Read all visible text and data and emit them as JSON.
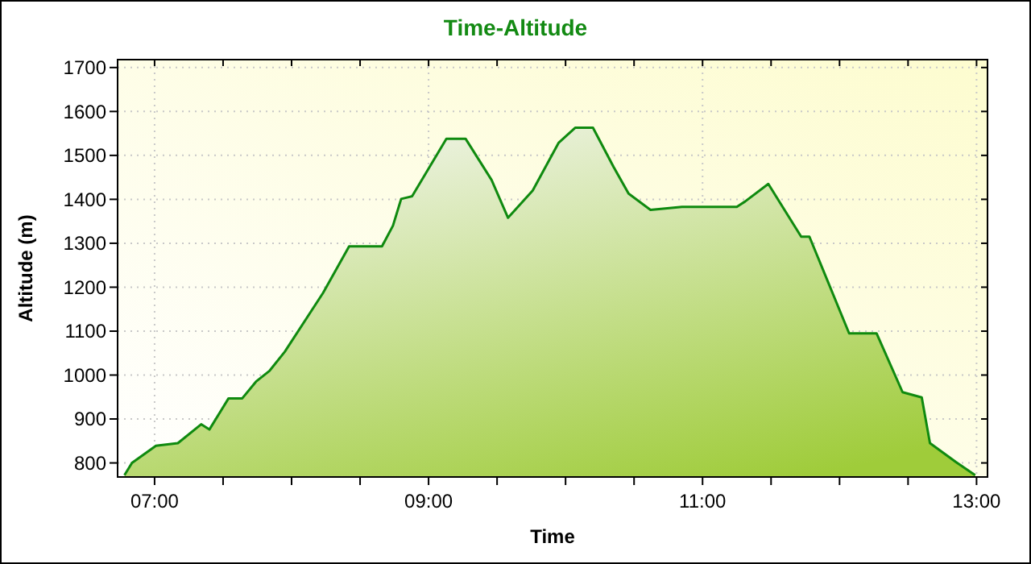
{
  "chart_data": {
    "type": "area",
    "title": "Time-Altitude",
    "xlabel": "Time",
    "ylabel": "Altitude (m)",
    "xlim": [
      6.73,
      13.08
    ],
    "ylim": [
      768,
      1718
    ],
    "xticks": [
      {
        "value": 7,
        "label": "07:00"
      },
      {
        "value": 7.5,
        "label": null
      },
      {
        "value": 8,
        "label": null
      },
      {
        "value": 8.5,
        "label": null
      },
      {
        "value": 9,
        "label": "09:00"
      },
      {
        "value": 9.5,
        "label": null
      },
      {
        "value": 10,
        "label": null
      },
      {
        "value": 10.5,
        "label": null
      },
      {
        "value": 11,
        "label": "11:00"
      },
      {
        "value": 11.5,
        "label": null
      },
      {
        "value": 12,
        "label": null
      },
      {
        "value": 12.5,
        "label": null
      },
      {
        "value": 13,
        "label": "13:00"
      }
    ],
    "yticks": [
      800,
      900,
      1000,
      1100,
      1200,
      1300,
      1400,
      1500,
      1600,
      1700
    ],
    "grid": true,
    "line_style": "solid",
    "series": [
      {
        "color": "#0f8a0f",
        "x": [
          6.78,
          6.835,
          7.01,
          7.17,
          7.34,
          7.4,
          7.54,
          7.64,
          7.74,
          7.84,
          7.95,
          8.23,
          8.42,
          8.66,
          8.74,
          8.8,
          8.88,
          9.13,
          9.27,
          9.46,
          9.58,
          9.76,
          9.95,
          10.07,
          10.2,
          10.35,
          10.46,
          10.62,
          10.85,
          11.25,
          11.31,
          11.48,
          11.72,
          11.78,
          12.07,
          12.27,
          12.46,
          12.6,
          12.66,
          12.85,
          12.99
        ],
        "values": [
          772,
          800,
          839,
          845,
          888,
          876,
          947,
          947,
          985,
          1010,
          1053,
          1187,
          1293,
          1293,
          1340,
          1401,
          1407,
          1538,
          1538,
          1444,
          1358,
          1420,
          1529,
          1563,
          1563,
          1474,
          1413,
          1376,
          1383,
          1383,
          1395,
          1435,
          1315,
          1315,
          1095,
          1095,
          961,
          949,
          845,
          802,
          772
        ]
      }
    ]
  }
}
